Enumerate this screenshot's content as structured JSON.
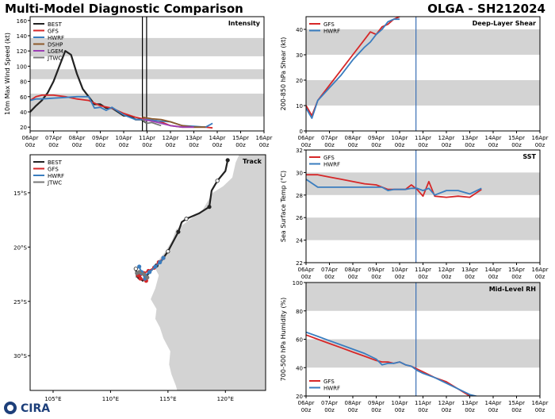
{
  "header": {
    "title": "Multi-Model Diagnostic Comparison",
    "storm_id": "OLGA - SH212024"
  },
  "logo_text": "CIRA",
  "colors": {
    "BEST": "#222222",
    "GFS": "#d62728",
    "HWRF": "#3a7dbf",
    "DSHP": "#8c5a2b",
    "LGEM": "#9b3fb5",
    "JTWC": "#777777",
    "band": "#d3d3d3",
    "land": "#d3d3d3",
    "init_line": "#3a6fb5"
  },
  "chart_data": [
    {
      "id": "intensity",
      "type": "line",
      "title": "Intensity",
      "ylabel": "10m Max Wind Speed (kt)",
      "xlabel": "",
      "x_ticks": [
        "06Apr\n00z",
        "07Apr\n00z",
        "08Apr\n00z",
        "09Apr\n00z",
        "10Apr\n00z",
        "11Apr\n00z",
        "12Apr\n00z",
        "13Apr\n00z",
        "14Apr\n00z",
        "15Apr\n00z",
        "16Apr\n00z"
      ],
      "xlim": [
        0,
        10
      ],
      "ylim": [
        15,
        165
      ],
      "y_ticks": [
        20,
        40,
        60,
        80,
        100,
        120,
        140,
        160
      ],
      "bands": [
        [
          34,
          64
        ],
        [
          83,
          96
        ],
        [
          113,
          137
        ]
      ],
      "vlines": [
        4.8,
        4.98
      ],
      "legend": [
        "BEST",
        "GFS",
        "HWRF",
        "DSHP",
        "LGEM",
        "JTWC"
      ],
      "series": [
        {
          "name": "BEST",
          "x": [
            0,
            0.25,
            0.5,
            0.75,
            1.0,
            1.25,
            1.5,
            1.75,
            2.0,
            2.25,
            2.5,
            2.75,
            3.0,
            3.25,
            3.5,
            3.75,
            4.0,
            4.25,
            4.5,
            4.75,
            5.0
          ],
          "y": [
            40,
            48,
            55,
            65,
            80,
            100,
            120,
            115,
            90,
            70,
            60,
            50,
            50,
            45,
            45,
            40,
            35,
            35,
            30,
            30,
            25
          ]
        },
        {
          "name": "GFS",
          "x": [
            0,
            0.25,
            0.5,
            1,
            1.5,
            2,
            2.5,
            3,
            3.5,
            4,
            4.5,
            5,
            5.5,
            6,
            6.5,
            7,
            7.5,
            7.8
          ],
          "y": [
            55,
            60,
            62,
            62,
            60,
            57,
            55,
            48,
            45,
            38,
            33,
            30,
            28,
            22,
            20,
            20,
            20,
            19
          ]
        },
        {
          "name": "HWRF",
          "x": [
            0,
            0.25,
            0.5,
            1,
            1.5,
            2,
            2.5,
            2.75,
            3,
            3.25,
            3.5,
            4,
            4.5,
            5,
            5.5,
            6,
            6.5,
            7,
            7.5,
            7.8
          ],
          "y": [
            55,
            57,
            57,
            58,
            59,
            60,
            60,
            45,
            46,
            42,
            46,
            36,
            30,
            30,
            28,
            27,
            22,
            21,
            20,
            25
          ]
        },
        {
          "name": "DSHP",
          "x": [
            4.8,
            5.2,
            5.6,
            6,
            6.5,
            7,
            7.5
          ],
          "y": [
            33,
            31,
            30,
            27,
            22,
            20,
            20
          ]
        },
        {
          "name": "LGEM",
          "x": [
            4.8,
            5.2,
            5.6,
            6,
            6.5,
            7
          ],
          "y": [
            30,
            28,
            25,
            22,
            20,
            20
          ]
        },
        {
          "name": "JTWC",
          "x": [
            4.8,
            5.0,
            5.2,
            5.4,
            5.6
          ],
          "y": [
            30,
            25,
            26,
            24,
            22
          ]
        }
      ]
    },
    {
      "id": "shear",
      "type": "line",
      "title": "Deep-Layer Shear",
      "ylabel": "200-850 hPa Shear (kt)",
      "xlabel": "",
      "x_ticks": [
        "06Apr\n00z",
        "07Apr\n00z",
        "08Apr\n00z",
        "09Apr\n00z",
        "10Apr\n00z",
        "11Apr\n00z",
        "12Apr\n00z",
        "13Apr\n00z",
        "14Apr\n00z",
        "15Apr\n00z",
        "16Apr\n00z"
      ],
      "xlim": [
        0,
        10
      ],
      "ylim": [
        0,
        45
      ],
      "y_ticks": [
        0,
        10,
        20,
        30,
        40
      ],
      "bands": [
        [
          10,
          20
        ],
        [
          30,
          40
        ]
      ],
      "vlines": [
        4.7
      ],
      "legend": [
        "GFS",
        "HWRF"
      ],
      "series": [
        {
          "name": "GFS",
          "x": [
            0,
            0.25,
            0.5,
            1,
            1.5,
            2,
            2.5,
            2.75,
            3,
            3.25,
            3.5,
            3.75,
            4
          ],
          "y": [
            10,
            6,
            12,
            18,
            24,
            30,
            36,
            39,
            38,
            41,
            42,
            44,
            45
          ]
        },
        {
          "name": "HWRF",
          "x": [
            0,
            0.25,
            0.5,
            1,
            1.5,
            2,
            2.5,
            2.75,
            3,
            3.25,
            3.5,
            3.75,
            4
          ],
          "y": [
            9,
            5,
            12,
            17,
            22,
            28,
            33,
            35,
            38,
            40,
            43,
            44,
            44
          ]
        }
      ]
    },
    {
      "id": "sst",
      "type": "line",
      "title": "SST",
      "ylabel": "Sea Surface Temp (°C)",
      "xlabel": "",
      "x_ticks": [
        "06Apr\n00z",
        "07Apr\n00z",
        "08Apr\n00z",
        "09Apr\n00z",
        "10Apr\n00z",
        "11Apr\n00z",
        "12Apr\n00z",
        "13Apr\n00z",
        "14Apr\n00z",
        "15Apr\n00z",
        "16Apr\n00z"
      ],
      "xlim": [
        0,
        10
      ],
      "ylim": [
        22,
        32
      ],
      "y_ticks": [
        22,
        24,
        26,
        28,
        30,
        32
      ],
      "bands": [
        [
          24,
          26
        ],
        [
          28,
          30
        ]
      ],
      "vlines": [
        4.7
      ],
      "legend": [
        "GFS",
        "HWRF"
      ],
      "series": [
        {
          "name": "GFS",
          "x": [
            0,
            0.5,
            1,
            1.5,
            2,
            2.5,
            3,
            3.25,
            3.5,
            3.75,
            4,
            4.25,
            4.5,
            4.75,
            5,
            5.25,
            5.5,
            6,
            6.5,
            7,
            7.5
          ],
          "y": [
            29.8,
            29.8,
            29.6,
            29.4,
            29.2,
            29.0,
            28.9,
            28.7,
            28.5,
            28.5,
            28.5,
            28.5,
            28.9,
            28.5,
            27.9,
            29.2,
            27.9,
            27.8,
            27.9,
            27.8,
            28.5
          ]
        },
        {
          "name": "HWRF",
          "x": [
            0,
            0.5,
            1,
            1.5,
            2,
            2.5,
            3,
            3.25,
            3.5,
            3.75,
            4,
            4.25,
            4.5,
            4.75,
            5,
            5.25,
            5.5,
            6,
            6.5,
            7,
            7.5
          ],
          "y": [
            29.4,
            28.7,
            28.7,
            28.7,
            28.7,
            28.7,
            28.7,
            28.7,
            28.4,
            28.5,
            28.5,
            28.5,
            28.6,
            28.6,
            28.4,
            28.6,
            28.0,
            28.4,
            28.4,
            28.1,
            28.6
          ]
        }
      ]
    },
    {
      "id": "rh",
      "type": "line",
      "title": "Mid-Level RH",
      "ylabel": "700-500 hPa Humidity (%)",
      "xlabel": "",
      "x_ticks": [
        "06Apr\n00z",
        "07Apr\n00z",
        "08Apr\n00z",
        "09Apr\n00z",
        "10Apr\n00z",
        "11Apr\n00z",
        "12Apr\n00z",
        "13Apr\n00z",
        "14Apr\n00z",
        "15Apr\n00z",
        "16Apr\n00z"
      ],
      "xlim": [
        0,
        10
      ],
      "ylim": [
        20,
        100
      ],
      "y_ticks": [
        20,
        40,
        60,
        80,
        100
      ],
      "bands": [
        [
          40,
          60
        ],
        [
          80,
          100
        ]
      ],
      "vlines": [
        4.7
      ],
      "legend": [
        "GFS",
        "HWRF"
      ],
      "series": [
        {
          "name": "GFS",
          "x": [
            0,
            0.5,
            1,
            1.5,
            2,
            2.5,
            3,
            3.25,
            3.5,
            3.75,
            4,
            4.25,
            4.5,
            4.75,
            5,
            5.5,
            6,
            6.5,
            7,
            7.5
          ],
          "y": [
            63,
            60,
            57,
            54,
            51,
            48,
            45,
            44,
            44,
            43,
            44,
            42,
            41,
            39,
            37,
            33,
            30,
            25,
            20,
            19
          ]
        },
        {
          "name": "HWRF",
          "x": [
            0,
            0.5,
            1,
            1.5,
            2,
            2.5,
            3,
            3.25,
            3.5,
            3.75,
            4,
            4.25,
            4.5,
            4.75,
            5,
            5.5,
            6,
            6.5,
            7,
            7.5
          ],
          "y": [
            65,
            62,
            59,
            56,
            53,
            50,
            46,
            42,
            43,
            43,
            44,
            42,
            41,
            38,
            36,
            33,
            29,
            25,
            21,
            19
          ]
        }
      ]
    },
    {
      "id": "track",
      "type": "line",
      "title": "Track",
      "xlim": [
        103,
        123.5
      ],
      "ylim": [
        -33.2,
        -11.5
      ],
      "x_ticks": [
        105,
        110,
        115,
        120
      ],
      "x_tick_labels": [
        "105°E",
        "110°E",
        "115°E",
        "120°E"
      ],
      "y_ticks": [
        -15,
        -20,
        -25,
        -30
      ],
      "y_tick_labels": [
        "15°S",
        "20°S",
        "25°S",
        "30°S"
      ],
      "legend": [
        "BEST",
        "GFS",
        "HWRF",
        "JTWC"
      ],
      "series": [
        {
          "name": "BEST",
          "lon": [
            120.2,
            120.0,
            119.3,
            118.8,
            118.6,
            117.7,
            116.6,
            116.2,
            115.9,
            115.5,
            115.0,
            114.4,
            114.0,
            113.5,
            113.1,
            112.8,
            112.5,
            112.3,
            112.2,
            112.3
          ],
          "lat": [
            -12.0,
            -13.0,
            -13.9,
            -14.8,
            -16.3,
            -16.9,
            -17.4,
            -17.7,
            -18.6,
            -19.4,
            -20.4,
            -21.3,
            -21.7,
            -22.2,
            -22.7,
            -23.1,
            -22.8,
            -22.5,
            -22.0,
            -22.8
          ]
        },
        {
          "name": "GFS",
          "lon": [
            114.6,
            114.2,
            113.8,
            113.3,
            112.9,
            112.6,
            112.4,
            112.6,
            113.1
          ],
          "lat": [
            -21.0,
            -21.4,
            -21.9,
            -22.2,
            -22.4,
            -22.5,
            -22.6,
            -22.9,
            -23.1
          ]
        },
        {
          "name": "HWRF",
          "lon": [
            114.6,
            114.3,
            113.9,
            113.4,
            113.0,
            112.7,
            112.5,
            112.7,
            113.0
          ],
          "lat": [
            -21.0,
            -21.4,
            -21.8,
            -22.3,
            -22.6,
            -22.4,
            -21.8,
            -22.3,
            -22.9
          ]
        },
        {
          "name": "JTWC",
          "lon": [
            112.3,
            112.5,
            112.9,
            113.2
          ],
          "lat": [
            -22.4,
            -22.3,
            -22.5,
            -22.8
          ]
        }
      ],
      "land": [
        [
          [
            123.5,
            -11.5
          ],
          [
            121.2,
            -11.5
          ],
          [
            120.9,
            -12.2
          ],
          [
            120.6,
            -13.6
          ],
          [
            119.8,
            -14.4
          ],
          [
            118.9,
            -15.0
          ],
          [
            118.0,
            -16.6
          ],
          [
            117.0,
            -17.4
          ],
          [
            115.7,
            -18.4
          ],
          [
            115.4,
            -19.3
          ],
          [
            114.8,
            -20.4
          ],
          [
            114.1,
            -21.3
          ],
          [
            113.8,
            -21.8
          ],
          [
            114.2,
            -22.6
          ],
          [
            113.9,
            -23.8
          ],
          [
            113.5,
            -24.8
          ],
          [
            114.0,
            -25.7
          ],
          [
            113.9,
            -26.6
          ],
          [
            114.3,
            -27.4
          ],
          [
            114.6,
            -28.4
          ],
          [
            115.2,
            -29.6
          ],
          [
            115.1,
            -30.8
          ],
          [
            115.3,
            -31.7
          ],
          [
            115.7,
            -32.8
          ],
          [
            115.8,
            -33.2
          ],
          [
            123.5,
            -33.2
          ]
        ]
      ]
    }
  ]
}
